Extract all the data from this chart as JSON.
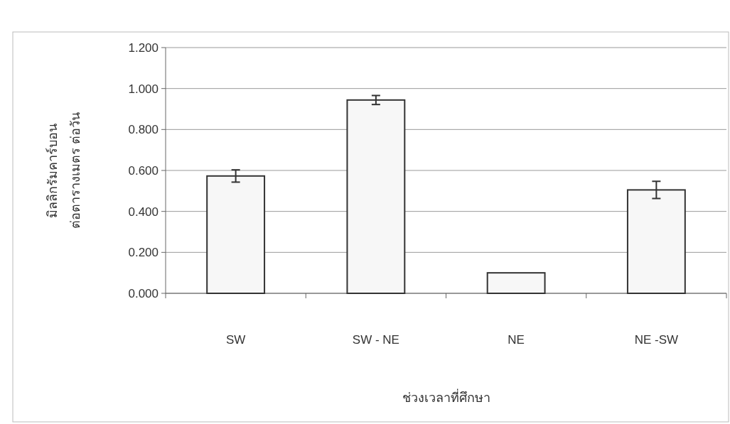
{
  "chart_data": {
    "type": "bar",
    "xlabel": "ช่วงเวลาที่ศึกษา",
    "ylabel": "มิลลิกรัมคาร์บอน\nต่อตารางเมตร ต่อวัน",
    "categories": [
      "SW",
      "SW - NE",
      "NE",
      "NE -SW"
    ],
    "values": [
      0.573,
      0.944,
      0.1,
      0.505
    ],
    "errors": [
      0.03,
      0.022,
      null,
      0.042
    ],
    "color": "#f7f7f7",
    "ylim": [
      0,
      1.2
    ],
    "yticks": [
      {
        "value": 0,
        "label": "0.000"
      },
      {
        "value": 0.2,
        "label": "0.200"
      },
      {
        "value": 0.4,
        "label": "0.400"
      },
      {
        "value": 0.6,
        "label": "0.600"
      },
      {
        "value": 0.8,
        "label": "0.800"
      },
      {
        "value": 1.0,
        "label": "1.000"
      },
      {
        "value": 1.2,
        "label": "1.200"
      }
    ],
    "grid": "y"
  }
}
